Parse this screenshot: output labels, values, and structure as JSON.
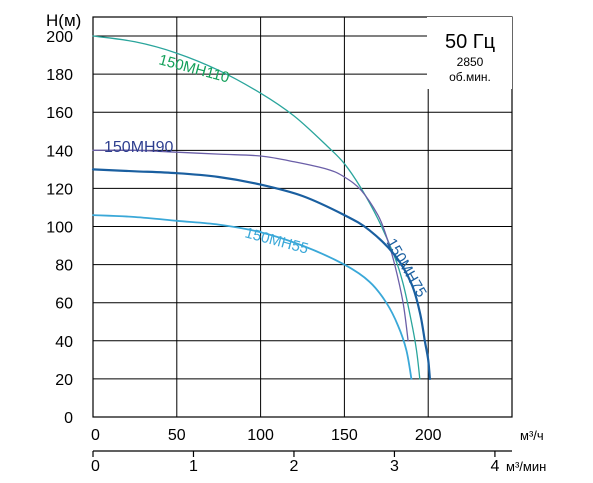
{
  "chart_data": {
    "type": "line",
    "ylabel": "H(м)",
    "xlabel": "м³/ч",
    "x2label": "м³/мин",
    "ylim": [
      0,
      210
    ],
    "xlim": [
      0,
      250
    ],
    "x2lim": [
      0,
      4.17
    ],
    "yticks": [
      0,
      20,
      40,
      60,
      80,
      100,
      120,
      140,
      160,
      180,
      200
    ],
    "xticks": [
      0,
      50,
      100,
      150,
      200
    ],
    "x2ticks": [
      0,
      1,
      2,
      3,
      4
    ],
    "grid": true,
    "info": {
      "freq": "50 Гц",
      "rpm": "2850",
      "rpm_unit": "об.мин."
    },
    "series": [
      {
        "name": "150MH110",
        "color": "#2aa59c",
        "label_color": "#13a05a",
        "points": [
          [
            0,
            200
          ],
          [
            25,
            197
          ],
          [
            50,
            191
          ],
          [
            75,
            182
          ],
          [
            100,
            170
          ],
          [
            120,
            158
          ],
          [
            140,
            142
          ],
          [
            150,
            133
          ],
          [
            160,
            120
          ],
          [
            170,
            104
          ],
          [
            180,
            84
          ],
          [
            185,
            70
          ],
          [
            190,
            50
          ],
          [
            193,
            35
          ],
          [
            195,
            20
          ]
        ]
      },
      {
        "name": "150MH90",
        "color": "#6b5fa8",
        "label_color": "#2e3f8f",
        "points": [
          [
            0,
            140
          ],
          [
            25,
            140
          ],
          [
            50,
            139
          ],
          [
            75,
            138
          ],
          [
            100,
            137
          ],
          [
            120,
            134
          ],
          [
            140,
            130
          ],
          [
            150,
            126
          ],
          [
            160,
            119
          ],
          [
            170,
            106
          ],
          [
            175,
            95
          ],
          [
            180,
            80
          ],
          [
            185,
            60
          ],
          [
            188,
            40
          ]
        ]
      },
      {
        "name": "150MH75",
        "color": "#1a5fa0",
        "label_color": "#1a5fa0",
        "points": [
          [
            0,
            130
          ],
          [
            25,
            129
          ],
          [
            50,
            128
          ],
          [
            75,
            126
          ],
          [
            100,
            122
          ],
          [
            125,
            116
          ],
          [
            150,
            106
          ],
          [
            165,
            98
          ],
          [
            180,
            85
          ],
          [
            190,
            70
          ],
          [
            195,
            55
          ],
          [
            198,
            40
          ],
          [
            200,
            30
          ],
          [
            201,
            20
          ]
        ]
      },
      {
        "name": "150MH55",
        "color": "#3aa8d8",
        "label_color": "#3aa8d8",
        "points": [
          [
            0,
            106
          ],
          [
            25,
            105
          ],
          [
            50,
            103
          ],
          [
            75,
            101
          ],
          [
            100,
            97
          ],
          [
            125,
            90
          ],
          [
            150,
            80
          ],
          [
            165,
            71
          ],
          [
            175,
            60
          ],
          [
            182,
            48
          ],
          [
            187,
            35
          ],
          [
            190,
            20
          ]
        ]
      }
    ]
  }
}
